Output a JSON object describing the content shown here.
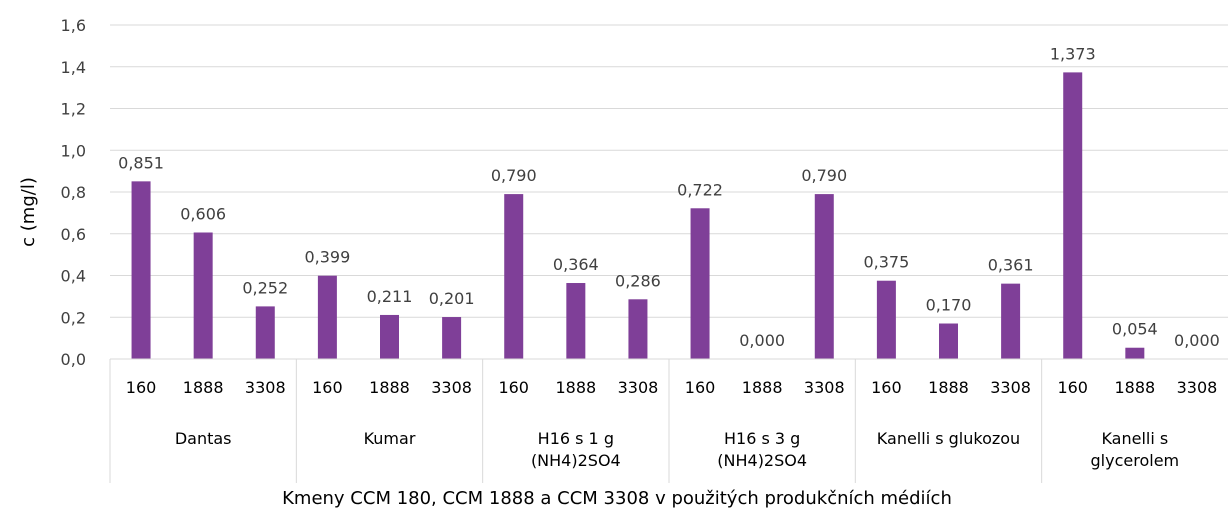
{
  "chart_data": {
    "type": "bar",
    "title": "",
    "xlabel": "Kmeny CCM 180, CCM 1888 a CCM 3308 v použitých produkčních médiích",
    "ylabel": "c (mg/l)",
    "ylim": [
      0,
      1.6
    ],
    "yticks": [
      "0,0",
      "0,2",
      "0,4",
      "0,6",
      "0,8",
      "1,0",
      "1,2",
      "1,4",
      "1,6"
    ],
    "grid": true,
    "legend": "none",
    "bar_color": "#7f3f98",
    "groups": [
      {
        "name": [
          "Dantas"
        ],
        "categories": [
          "160",
          "1888",
          "3308"
        ],
        "values": [
          0.851,
          0.606,
          0.252
        ],
        "labels": [
          "0,851",
          "0,606",
          "0,252"
        ]
      },
      {
        "name": [
          "Kumar"
        ],
        "categories": [
          "160",
          "1888",
          "3308"
        ],
        "values": [
          0.399,
          0.211,
          0.201
        ],
        "labels": [
          "0,399",
          "0,211",
          "0,201"
        ]
      },
      {
        "name": [
          "H16  s 1 g",
          "(NH4)2SO4"
        ],
        "categories": [
          "160",
          "1888",
          "3308"
        ],
        "values": [
          0.79,
          0.364,
          0.286
        ],
        "labels": [
          "0,790",
          "0,364",
          "0,286"
        ]
      },
      {
        "name": [
          "H16  s 3 g",
          "(NH4)2SO4"
        ],
        "categories": [
          "160",
          "1888",
          "3308"
        ],
        "values": [
          0.722,
          0.0,
          0.79
        ],
        "labels": [
          "0,722",
          "0,000",
          "0,790"
        ]
      },
      {
        "name": [
          "Kanelli s glukozou"
        ],
        "categories": [
          "160",
          "1888",
          "3308"
        ],
        "values": [
          0.375,
          0.17,
          0.361
        ],
        "labels": [
          "0,375",
          "0,170",
          "0,361"
        ]
      },
      {
        "name": [
          "Kanelli s",
          "glycerolem"
        ],
        "categories": [
          "160",
          "1888",
          "3308"
        ],
        "values": [
          1.373,
          0.054,
          0.0
        ],
        "labels": [
          "1,373",
          "0,054",
          "0,000"
        ]
      }
    ]
  }
}
